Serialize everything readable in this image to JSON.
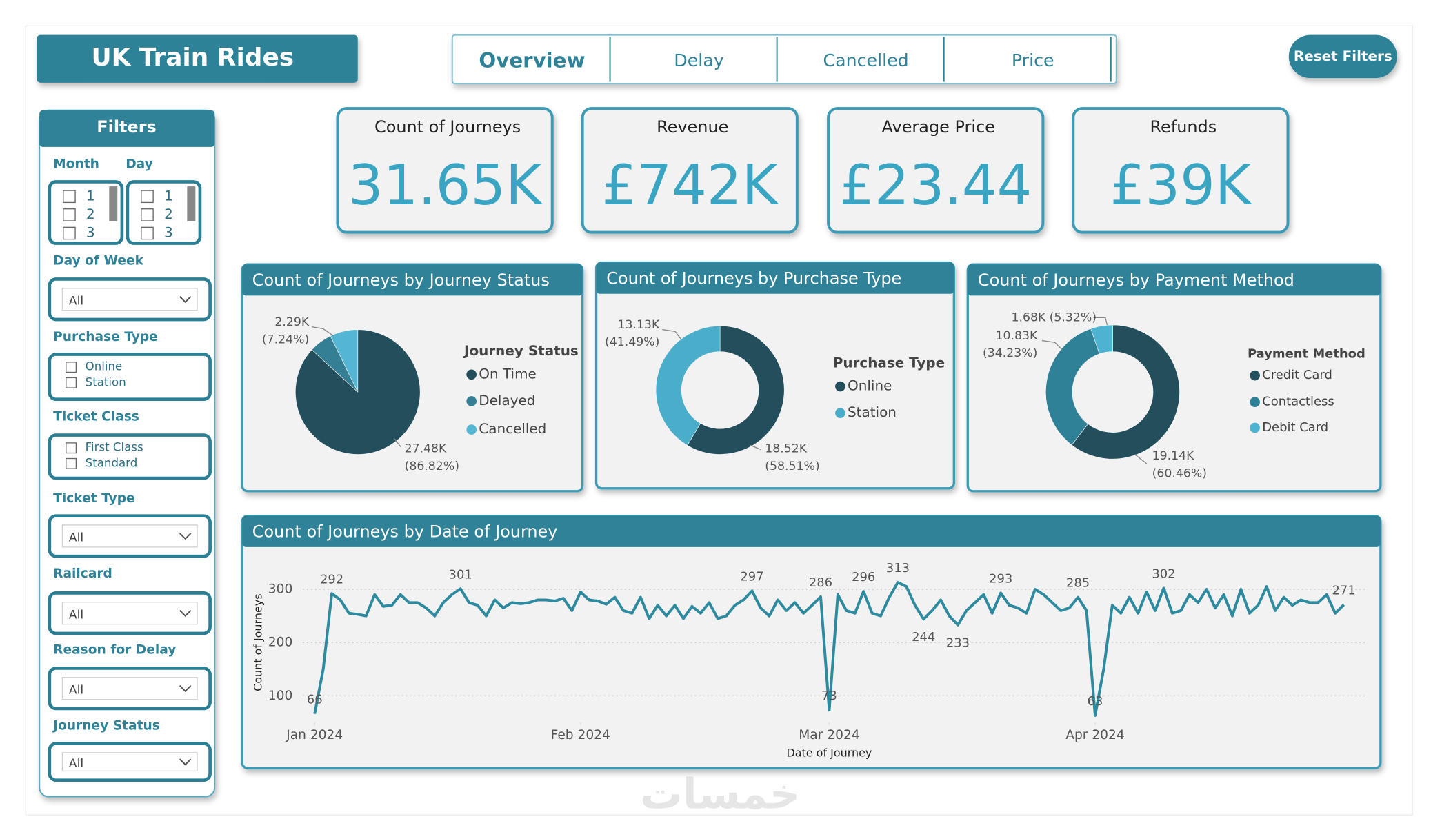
{
  "header": {
    "title": "UK Train Rides",
    "reset": "Reset Filters"
  },
  "tabs": [
    "Overview",
    "Delay",
    "Cancelled",
    "Price"
  ],
  "filters": {
    "title": "Filters",
    "month": {
      "label": "Month",
      "options": [
        "1",
        "2",
        "3"
      ]
    },
    "day": {
      "label": "Day",
      "options": [
        "1",
        "2",
        "3"
      ]
    },
    "day_of_week": {
      "label": "Day of Week",
      "value": "All"
    },
    "purchase_type": {
      "label": "Purchase Type",
      "options": [
        "Online",
        "Station"
      ]
    },
    "ticket_class": {
      "label": "Ticket Class",
      "options": [
        "First Class",
        "Standard"
      ]
    },
    "ticket_type": {
      "label": "Ticket Type",
      "value": "All"
    },
    "railcard": {
      "label": "Railcard",
      "value": "All"
    },
    "reason_for_delay": {
      "label": "Reason for Delay",
      "value": "All"
    },
    "journey_status": {
      "label": "Journey Status",
      "value": "All"
    }
  },
  "kpis": [
    {
      "label": "Count of Journeys",
      "value": "31.65K"
    },
    {
      "label": "Revenue",
      "value": "£742K"
    },
    {
      "label": "Average Price",
      "value": "£23.44"
    },
    {
      "label": "Refunds",
      "value": "£39K"
    }
  ],
  "watermark": "خمسات",
  "chart_data": [
    {
      "type": "pie",
      "title": "Count of Journeys by Journey Status",
      "legend_title": "Journey Status",
      "categories": [
        "On Time",
        "Delayed",
        "Cancelled"
      ],
      "values": [
        27480,
        1880,
        2290
      ],
      "value_labels": [
        "27.48K",
        null,
        "2.29K"
      ],
      "percent_labels": [
        "(86.82%)",
        null,
        "(7.24%)"
      ],
      "colors": [
        "#234e5b",
        "#347f93",
        "#55b6d3"
      ],
      "donut": false
    },
    {
      "type": "pie",
      "title": "Count of Journeys by Purchase Type",
      "legend_title": "Purchase Type",
      "categories": [
        "Online",
        "Station"
      ],
      "values": [
        18520,
        13130
      ],
      "value_labels": [
        "18.52K",
        "13.13K"
      ],
      "percent_labels": [
        "(58.51%)",
        "(41.49%)"
      ],
      "colors": [
        "#234e5b",
        "#4aaecb"
      ],
      "donut": true
    },
    {
      "type": "pie",
      "title": "Count of Journeys by Payment Method",
      "legend_title": "Payment Method",
      "categories": [
        "Credit Card",
        "Contactless",
        "Debit Card"
      ],
      "values": [
        19140,
        10830,
        1680
      ],
      "value_labels": [
        "19.14K",
        "10.83K",
        "1.68K"
      ],
      "percent_labels": [
        "(60.46%)",
        "(34.23%)",
        "(5.32%)"
      ],
      "colors": [
        "#234e5b",
        "#2f8197",
        "#4eb3d0"
      ],
      "donut": true
    },
    {
      "type": "line",
      "title": "Count of Journeys by Date of Journey",
      "xlabel": "Date of Journey",
      "ylabel": "Count of Journeys",
      "x": [
        0,
        1,
        2,
        3,
        4,
        5,
        6,
        7,
        8,
        9,
        10,
        11,
        12,
        13,
        14,
        15,
        16,
        17,
        18,
        19,
        20,
        21,
        22,
        23,
        24,
        25,
        26,
        27,
        28,
        29,
        30,
        31,
        32,
        33,
        34,
        35,
        36,
        37,
        38,
        39,
        40,
        41,
        42,
        43,
        44,
        45,
        46,
        47,
        48,
        49,
        50,
        51,
        52,
        53,
        54,
        55,
        56,
        57,
        58,
        59,
        60,
        61,
        62,
        63,
        64,
        65,
        66,
        67,
        68,
        69,
        70,
        71,
        72,
        73,
        74,
        75,
        76,
        77,
        78,
        79,
        80,
        81,
        82,
        83,
        84,
        85,
        86,
        87,
        88,
        89,
        90,
        91,
        92,
        93,
        94,
        95,
        96,
        97,
        98,
        99,
        100,
        101,
        102,
        103,
        104,
        105,
        106,
        107,
        108,
        109,
        110,
        111,
        112,
        113,
        114,
        115,
        116,
        117,
        118,
        119,
        120
      ],
      "values": [
        66,
        150,
        292,
        280,
        255,
        253,
        250,
        290,
        268,
        270,
        290,
        275,
        275,
        265,
        250,
        275,
        290,
        301,
        275,
        270,
        250,
        280,
        265,
        275,
        273,
        275,
        280,
        280,
        278,
        283,
        260,
        295,
        280,
        278,
        272,
        285,
        260,
        255,
        285,
        245,
        270,
        250,
        270,
        245,
        268,
        255,
        275,
        245,
        250,
        270,
        280,
        297,
        265,
        250,
        280,
        260,
        275,
        255,
        270,
        286,
        73,
        290,
        260,
        255,
        296,
        255,
        250,
        285,
        313,
        305,
        270,
        244,
        260,
        280,
        250,
        233,
        260,
        275,
        290,
        255,
        293,
        270,
        265,
        255,
        300,
        290,
        275,
        260,
        265,
        285,
        260,
        63,
        150,
        270,
        255,
        285,
        255,
        295,
        260,
        302,
        255,
        260,
        290,
        275,
        300,
        265,
        290,
        250,
        300,
        255,
        270,
        305,
        260,
        285,
        270,
        280,
        275,
        275,
        290,
        255,
        271
      ],
      "label_indices": [
        0,
        2,
        17,
        51,
        59,
        60,
        64,
        68,
        71,
        75,
        80,
        89,
        91,
        99,
        120
      ],
      "color": "#2e8a9e",
      "xlim": [
        0,
        120
      ],
      "xticks": [
        {
          "value": 0,
          "label": "Jan 2024"
        },
        {
          "value": 31,
          "label": "Feb 2024"
        },
        {
          "value": 60,
          "label": "Mar 2024"
        },
        {
          "value": 91,
          "label": "Apr 2024"
        }
      ],
      "ylim": [
        50,
        330
      ],
      "yticks": [
        100,
        200,
        300
      ],
      "grid": true
    }
  ]
}
